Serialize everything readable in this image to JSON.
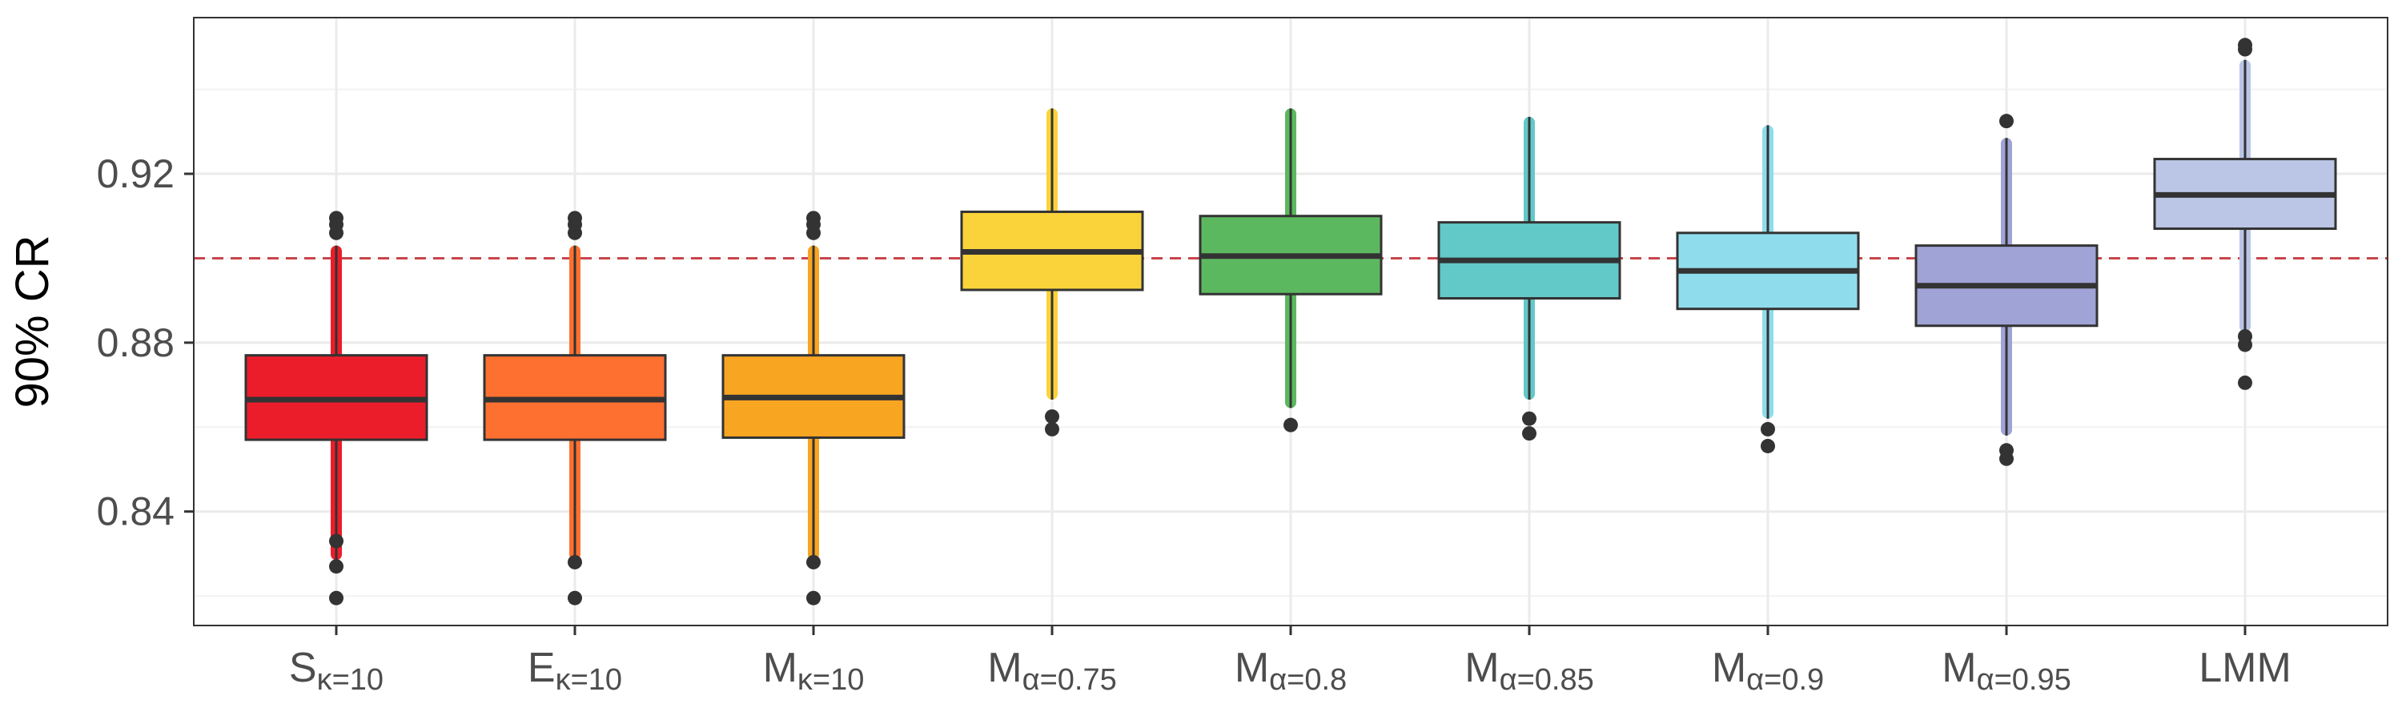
{
  "chart_data": {
    "type": "boxplot",
    "title": "",
    "xlabel": "",
    "ylabel": "90% CR",
    "ylim": [
      0.813,
      0.957
    ],
    "yticks": [
      0.84,
      0.88,
      0.92
    ],
    "ytick_labels": [
      "0.84",
      "0.88",
      "0.92"
    ],
    "reference_line": {
      "y": 0.9,
      "style": "dashed",
      "color": "#c8464b"
    },
    "grid": true,
    "legend": "none",
    "boxes": [
      {
        "main": "S",
        "sub": "κ=10",
        "fill": "#ec1d2b",
        "whisker_color": "#ec1d2b",
        "min": 0.8285,
        "q1": 0.857,
        "median": 0.8665,
        "q3": 0.877,
        "max": 0.903,
        "outliers": [
          0.8195,
          0.827,
          0.833,
          0.906,
          0.908,
          0.9095
        ]
      },
      {
        "main": "E",
        "sub": "κ=10",
        "fill": "#fd7030",
        "whisker_color": "#fd7030",
        "min": 0.8285,
        "q1": 0.857,
        "median": 0.8665,
        "q3": 0.877,
        "max": 0.903,
        "outliers": [
          0.8195,
          0.828,
          0.906,
          0.908,
          0.9095
        ]
      },
      {
        "main": "M",
        "sub": "κ=10",
        "fill": "#f8a522",
        "whisker_color": "#f8a522",
        "min": 0.8285,
        "q1": 0.8575,
        "median": 0.867,
        "q3": 0.877,
        "max": 0.903,
        "outliers": [
          0.8195,
          0.828,
          0.906,
          0.908,
          0.9095
        ]
      },
      {
        "main": "M",
        "sub": "α=0.75",
        "fill": "#fad33a",
        "whisker_color": "#fad33a",
        "min": 0.8665,
        "q1": 0.8925,
        "median": 0.9015,
        "q3": 0.911,
        "max": 0.9355,
        "outliers": [
          0.8595,
          0.8625
        ]
      },
      {
        "main": "M",
        "sub": "α=0.8",
        "fill": "#5cb85f",
        "whisker_color": "#5cb85f",
        "min": 0.8645,
        "q1": 0.8915,
        "median": 0.9005,
        "q3": 0.91,
        "max": 0.9355,
        "outliers": [
          0.8605
        ]
      },
      {
        "main": "M",
        "sub": "α=0.85",
        "fill": "#62c9c8",
        "whisker_color": "#62c9c8",
        "min": 0.8665,
        "q1": 0.8905,
        "median": 0.8995,
        "q3": 0.9085,
        "max": 0.9335,
        "outliers": [
          0.8585,
          0.862
        ]
      },
      {
        "main": "M",
        "sub": "α=0.9",
        "fill": "#8fdcec",
        "whisker_color": "#8fdcec",
        "min": 0.862,
        "q1": 0.888,
        "median": 0.897,
        "q3": 0.906,
        "max": 0.9315,
        "outliers": [
          0.8555,
          0.8595
        ]
      },
      {
        "main": "M",
        "sub": "α=0.95",
        "fill": "#a0a3d6",
        "whisker_color": "#a0a3d6",
        "min": 0.858,
        "q1": 0.884,
        "median": 0.8935,
        "q3": 0.903,
        "max": 0.9285,
        "outliers": [
          0.8525,
          0.8545,
          0.9325
        ]
      },
      {
        "main": "LMM",
        "sub": "",
        "fill": "#bbc6e6",
        "whisker_color": "#bbc6e6",
        "min": 0.8825,
        "q1": 0.907,
        "median": 0.915,
        "q3": 0.9235,
        "max": 0.947,
        "outliers": [
          0.8705,
          0.8795,
          0.8815,
          0.9495,
          0.9505
        ]
      }
    ]
  }
}
